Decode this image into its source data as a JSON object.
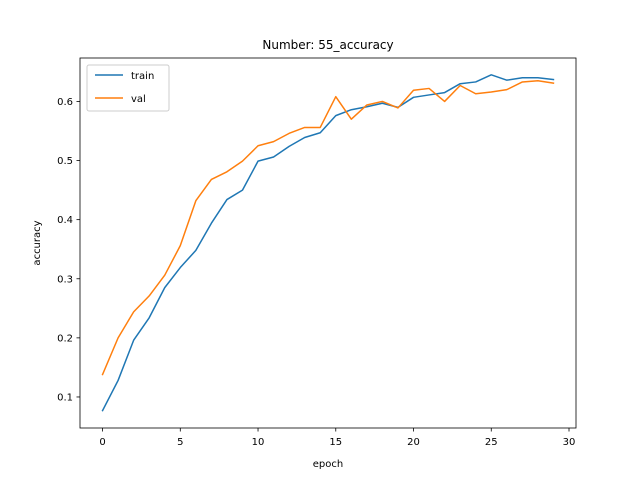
{
  "chart_data": {
    "type": "line",
    "title": "Number: 55_accuracy",
    "xlabel": "epoch",
    "ylabel": "accuracy",
    "xlim": [
      -1.45,
      30.45
    ],
    "ylim": [
      0.0475,
      0.6735
    ],
    "xticks": [
      0,
      5,
      10,
      15,
      20,
      25,
      30
    ],
    "yticks": [
      0.1,
      0.2,
      0.3,
      0.4,
      0.5,
      0.6
    ],
    "xtick_labels": [
      "0",
      "5",
      "10",
      "15",
      "20",
      "25",
      "30"
    ],
    "ytick_labels": [
      "0.1",
      "0.2",
      "0.3",
      "0.4",
      "0.5",
      "0.6"
    ],
    "grid": false,
    "legend_position": "top-left",
    "x": [
      0,
      1,
      2,
      3,
      4,
      5,
      6,
      7,
      8,
      9,
      10,
      11,
      12,
      13,
      14,
      15,
      16,
      17,
      18,
      19,
      20,
      21,
      22,
      23,
      24,
      25,
      26,
      27,
      28,
      29
    ],
    "series": [
      {
        "name": "train",
        "color": "#1f77b4",
        "values": [
          0.077,
          0.128,
          0.196,
          0.234,
          0.285,
          0.319,
          0.348,
          0.394,
          0.434,
          0.45,
          0.499,
          0.506,
          0.524,
          0.539,
          0.547,
          0.576,
          0.586,
          0.591,
          0.597,
          0.59,
          0.607,
          0.611,
          0.615,
          0.63,
          0.633,
          0.645,
          0.636,
          0.64,
          0.64,
          0.637
        ]
      },
      {
        "name": "val",
        "color": "#ff7f0e",
        "values": [
          0.138,
          0.2,
          0.244,
          0.271,
          0.306,
          0.356,
          0.432,
          0.468,
          0.481,
          0.499,
          0.525,
          0.532,
          0.546,
          0.556,
          0.556,
          0.608,
          0.57,
          0.594,
          0.6,
          0.589,
          0.619,
          0.622,
          0.6,
          0.627,
          0.613,
          0.616,
          0.62,
          0.633,
          0.635,
          0.631
        ]
      }
    ]
  }
}
